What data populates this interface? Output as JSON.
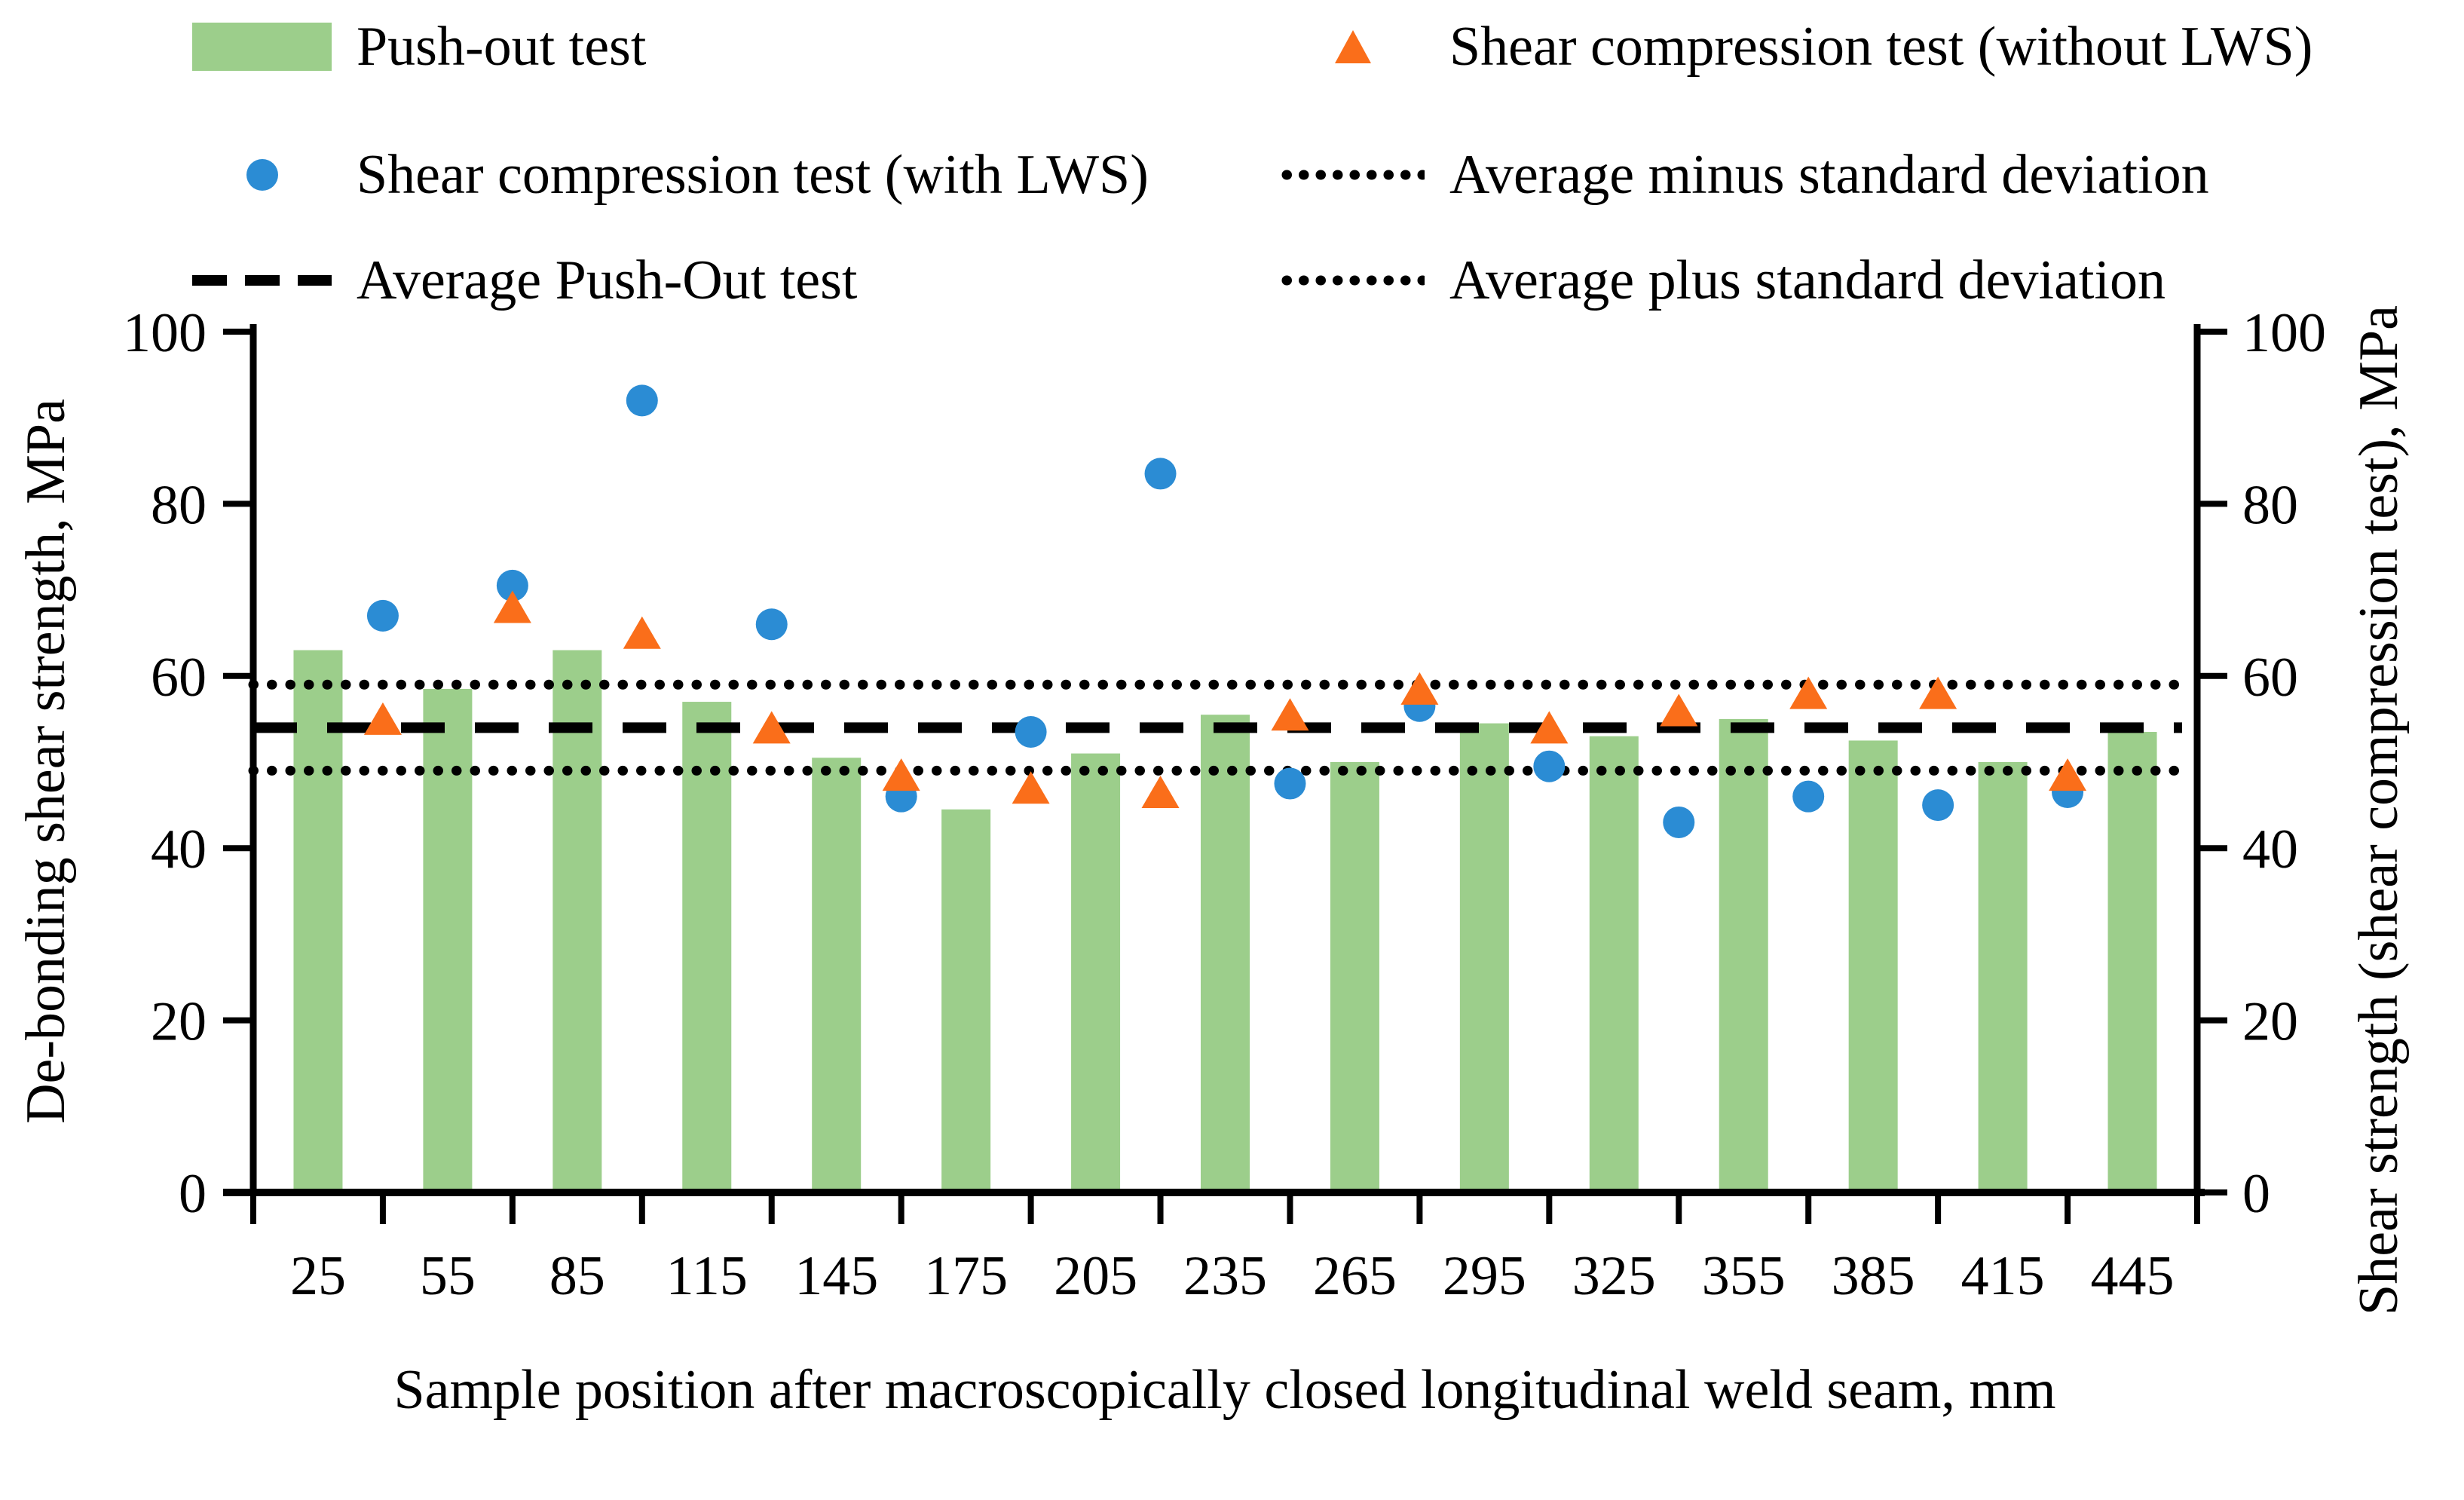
{
  "legend": {
    "col1": [
      {
        "marker": "bar-swatch",
        "label": "Push-out test"
      },
      {
        "marker": "circle",
        "label": "Shear compression test (with LWS)"
      },
      {
        "marker": "dashed-line",
        "label": "Average Push-Out test"
      }
    ],
    "col2": [
      {
        "marker": "triangle",
        "label": "Shear compression test (without LWS)"
      },
      {
        "marker": "dotted-line",
        "label": "Average minus standard deviation"
      },
      {
        "marker": "dotted-line",
        "label": "Average plus standard deviation"
      }
    ]
  },
  "colors": {
    "bar_green": "#9CCE8B",
    "circle_blue": "#2B8CD4",
    "triangle_orange": "#FA6E1A",
    "line_black": "#000000"
  },
  "chart_data": {
    "type": "bar",
    "title": "",
    "xlabel": "Sample position after macroscopically closed longitudinal weld seam, mm",
    "ylabel_left": "De-bonding shear strength, MPa",
    "ylabel_right": "Shear strength (shear compression test), MPa",
    "ylim": [
      0,
      100
    ],
    "yticks": [
      0,
      20,
      40,
      60,
      80,
      100
    ],
    "grid": "off",
    "legend_position": "top",
    "categories": [
      25,
      55,
      85,
      115,
      145,
      175,
      205,
      235,
      265,
      295,
      325,
      355,
      385,
      415,
      445
    ],
    "series": [
      {
        "name": "Push-out test",
        "type": "bar",
        "color": "#9CCE8B",
        "x_mm": [
          25,
          55,
          85,
          115,
          145,
          175,
          205,
          235,
          265,
          295,
          325,
          355,
          385,
          415,
          445
        ],
        "values": [
          63,
          58.5,
          63,
          57,
          50.5,
          44.5,
          51,
          55.5,
          50,
          54.5,
          53,
          55,
          52.5,
          50,
          53.5
        ]
      },
      {
        "name": "Shear compression test (with LWS)",
        "type": "scatter-circle",
        "color": "#2B8CD4",
        "x_mm": [
          40,
          70,
          100,
          130,
          160,
          190,
          220,
          250,
          280,
          310,
          340,
          370,
          400,
          430
        ],
        "values": [
          67,
          70.5,
          92,
          66,
          46,
          53.5,
          83.5,
          47.5,
          56.5,
          49.5,
          43,
          46,
          45,
          46.5
        ]
      },
      {
        "name": "Shear compression test (without LWS)",
        "type": "scatter-triangle",
        "color": "#FA6E1A",
        "x_mm": [
          40,
          70,
          100,
          130,
          160,
          190,
          220,
          250,
          280,
          310,
          340,
          370,
          400,
          430
        ],
        "values": [
          55,
          68,
          65,
          54,
          48.5,
          47,
          46.5,
          55.5,
          58.5,
          54,
          56,
          58,
          58,
          48.5
        ]
      },
      {
        "name": "Average Push-Out test",
        "type": "hline",
        "style": "dashed",
        "value": 54
      },
      {
        "name": "Average minus standard deviation",
        "type": "hline",
        "style": "dotted",
        "value": 49
      },
      {
        "name": "Average plus standard deviation",
        "type": "hline",
        "style": "dotted",
        "value": 59
      }
    ]
  }
}
